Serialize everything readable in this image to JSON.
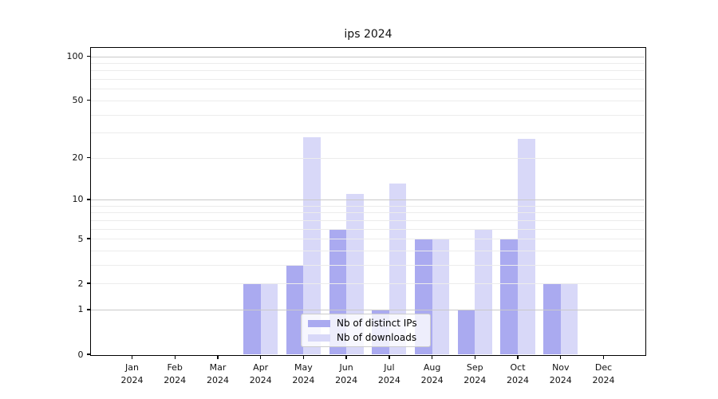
{
  "chart_data": {
    "type": "bar",
    "title": "ips 2024",
    "categories": [
      "Jan",
      "Feb",
      "Mar",
      "Apr",
      "May",
      "Jun",
      "Jul",
      "Aug",
      "Sep",
      "Oct",
      "Nov",
      "Dec"
    ],
    "year_label": "2024",
    "series": [
      {
        "name": "Nb of distinct IPs",
        "color": "#aaaaf0",
        "values": [
          0,
          0,
          0,
          2,
          3,
          6,
          1,
          5,
          1,
          5,
          2,
          0
        ]
      },
      {
        "name": "Nb of downloads",
        "color": "#d8d8f8",
        "values": [
          0,
          0,
          0,
          2,
          28,
          11,
          13,
          5,
          6,
          27,
          2,
          0
        ]
      }
    ],
    "xlabel": "",
    "ylabel": "",
    "y_scale": "log1p",
    "ylim": [
      0,
      114
    ],
    "y_ticks": [
      0,
      1,
      2,
      5,
      10,
      20,
      50,
      100
    ],
    "grid": {
      "major_lines": [
        1,
        10,
        100
      ],
      "minor_lines": [
        2,
        3,
        4,
        5,
        6,
        7,
        8,
        9,
        20,
        30,
        40,
        50,
        60,
        70,
        80,
        90
      ],
      "major_color": "#c9c9c9",
      "minor_color": "#ececec",
      "grid_on_top_of_bars": true
    },
    "legend_position": "lower center",
    "axis_color": "#000000"
  }
}
